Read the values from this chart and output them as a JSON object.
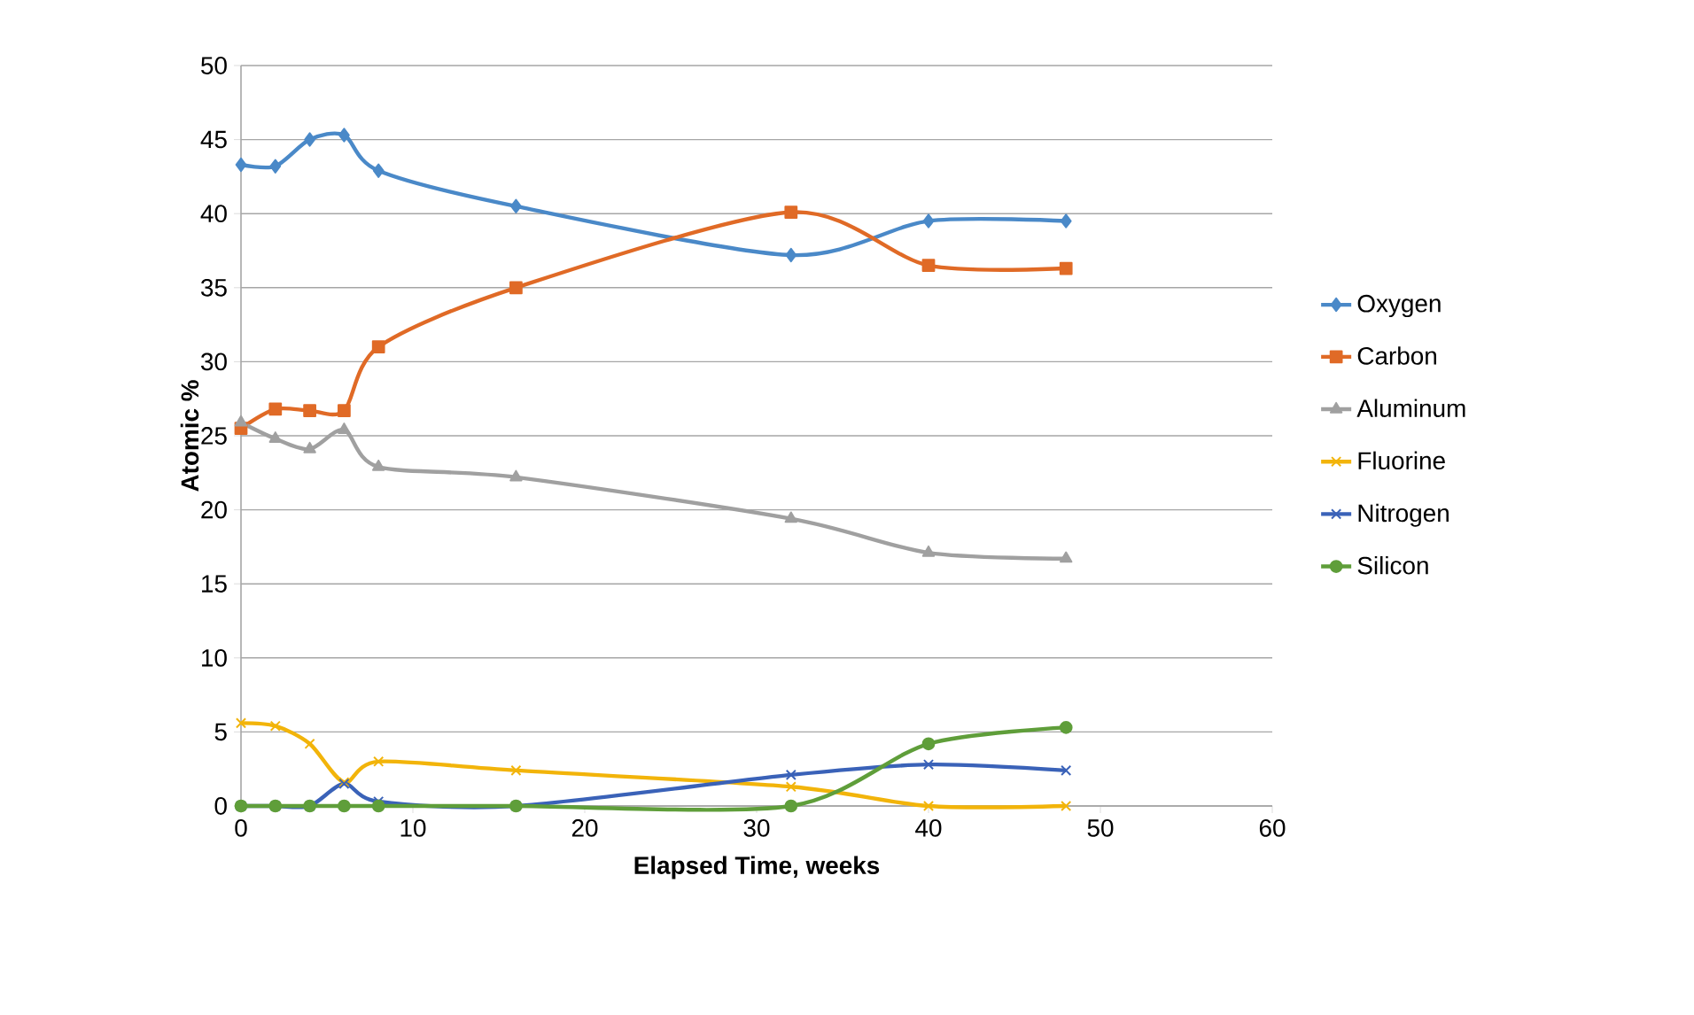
{
  "chart_data": {
    "type": "line",
    "xlabel": "Elapsed Time, weeks",
    "ylabel": "Atomic %",
    "x": [
      0,
      2,
      4,
      6,
      8,
      16,
      32,
      40,
      48
    ],
    "series": [
      {
        "name": "Oxygen",
        "color": "#4a89c8",
        "marker": "diamond",
        "values": [
          43.3,
          43.2,
          45.0,
          45.3,
          42.9,
          40.5,
          37.2,
          39.5,
          39.5
        ]
      },
      {
        "name": "Carbon",
        "color": "#e06a26",
        "marker": "square",
        "values": [
          25.5,
          26.8,
          26.7,
          26.7,
          31.0,
          35.0,
          40.1,
          36.5,
          36.3
        ]
      },
      {
        "name": "Aluminum",
        "color": "#a0a0a0",
        "marker": "triangle",
        "values": [
          25.9,
          24.8,
          24.1,
          25.4,
          22.9,
          22.2,
          19.4,
          17.1,
          16.7
        ]
      },
      {
        "name": "Fluorine",
        "color": "#f2b40a",
        "marker": "cross",
        "values": [
          5.6,
          5.4,
          4.2,
          1.6,
          3.0,
          2.4,
          1.3,
          0,
          0
        ]
      },
      {
        "name": "Nitrogen",
        "color": "#3a62b8",
        "marker": "cross",
        "values": [
          0,
          0,
          0,
          1.5,
          0.3,
          0,
          2.1,
          2.8,
          2.4
        ]
      },
      {
        "name": "Silicon",
        "color": "#5f9e3a",
        "marker": "circle",
        "values": [
          0,
          0,
          0,
          0,
          0,
          0,
          0,
          4.2,
          5.3
        ]
      }
    ],
    "xlim": [
      0,
      60
    ],
    "xticks": [
      0,
      10,
      20,
      30,
      40,
      50,
      60
    ],
    "ylim": [
      0,
      50
    ],
    "yticks": [
      0,
      5,
      10,
      15,
      20,
      25,
      30,
      35,
      40,
      45,
      50
    ],
    "grid": "y",
    "legend": "right",
    "line_style": "solid"
  }
}
